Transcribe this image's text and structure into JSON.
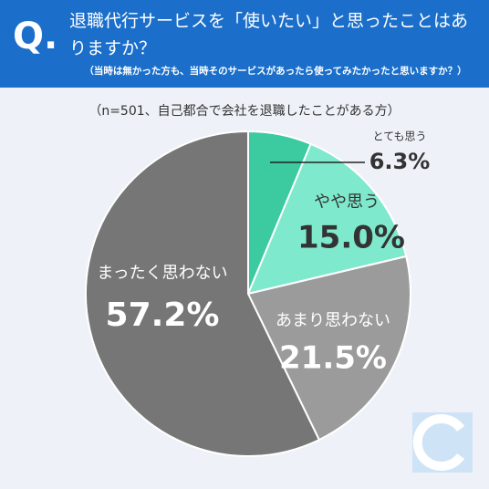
{
  "chart_data": {
    "type": "pie",
    "header_mark": "Q.",
    "title": "退職代行サービスを「使いたい」と思ったことはありますか？",
    "subtitle": "（当時は無かった方も、当時そのサービスがあったら使ってみたかったと思いますか？）",
    "note": "（n=501、自己都合で会社を退職したことがある方）",
    "categories": [
      "とても思う",
      "やや思う",
      "あまり思わない",
      "まったく思わない"
    ],
    "values": [
      6.3,
      15.0,
      21.5,
      57.2
    ],
    "value_labels": [
      "6.3%",
      "15.0%",
      "21.5%",
      "57.2%"
    ],
    "colors": [
      "#3ccaa0",
      "#7fe9cd",
      "#9b9b9b",
      "#767676"
    ]
  }
}
